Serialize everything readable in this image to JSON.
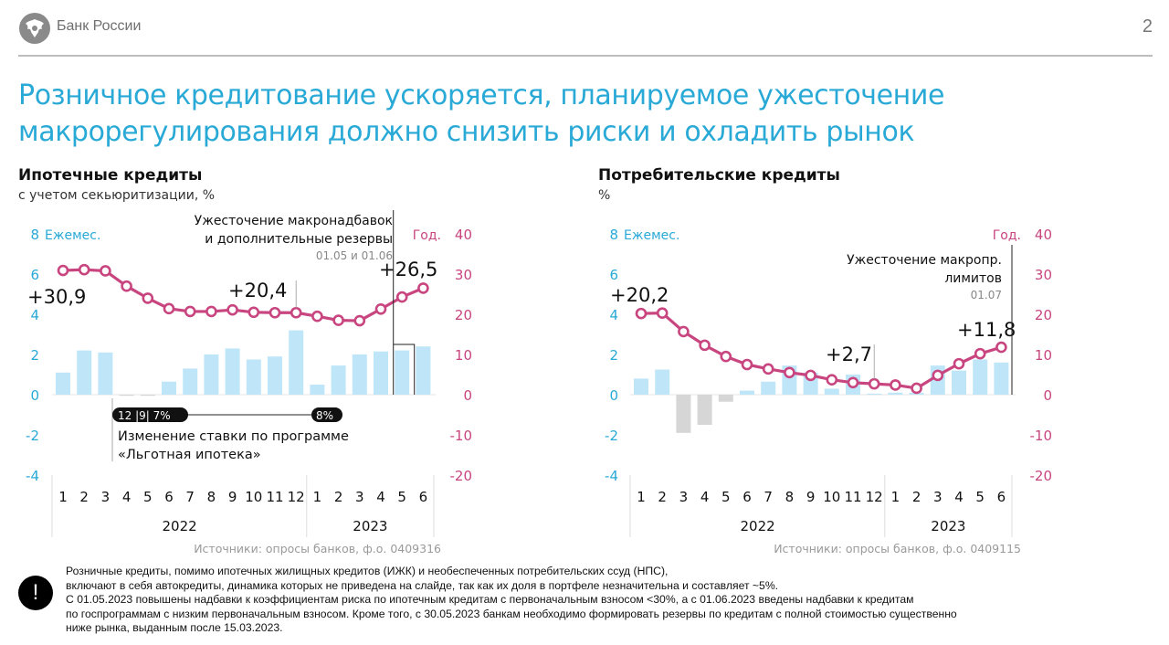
{
  "header": {
    "bank_name": "Банк России",
    "page_number": "2"
  },
  "title_lines": [
    "Розничное кредитование ускоряется, планируемое ужесточение",
    "макрорегулирования должно снизить риски и охладить рынок"
  ],
  "colors": {
    "accent_blue": "#29a9d6",
    "bar_blue": "#bfe6f8",
    "bar_negative": "#d6d6d6",
    "line_magenta": "#c8457f"
  },
  "chart_data": [
    {
      "type": "bar+line",
      "title": "Ипотечные кредиты",
      "subtitle": "с учетом секьюритизации, %",
      "left_axis_label": "Ежемес.",
      "right_axis_label": "Год.",
      "left_ticks": [
        8,
        6,
        4,
        2,
        0,
        -2,
        -4
      ],
      "right_ticks": [
        40,
        30,
        20,
        10,
        0,
        -10,
        -20
      ],
      "left_ylim": [
        -4,
        8
      ],
      "right_ylim": [
        -20,
        40
      ],
      "months": [
        "1",
        "2",
        "3",
        "4",
        "5",
        "6",
        "7",
        "8",
        "9",
        "10",
        "11",
        "12",
        "1",
        "2",
        "3",
        "4",
        "5",
        "6"
      ],
      "years": [
        {
          "label": "2022",
          "count": 12
        },
        {
          "label": "2023",
          "count": 6
        }
      ],
      "series": [
        {
          "name": "Ежемес.",
          "kind": "bar",
          "axis": "left",
          "values": [
            1.1,
            2.2,
            2.1,
            -0.05,
            -0.05,
            0.65,
            1.3,
            2.0,
            2.3,
            1.75,
            1.9,
            3.2,
            0.5,
            1.45,
            2.0,
            2.15,
            2.2,
            2.4
          ]
        },
        {
          "name": "Год.",
          "kind": "line",
          "axis": "right",
          "values": [
            30.9,
            31.1,
            30.8,
            27.0,
            24.0,
            21.4,
            20.7,
            20.7,
            21.1,
            20.5,
            20.4,
            20.4,
            19.5,
            18.5,
            18.4,
            21.3,
            24.3,
            26.5
          ]
        }
      ],
      "annotations": [
        {
          "text": "+30,9",
          "index": 0
        },
        {
          "text": "+20,4",
          "index": 11
        },
        {
          "text": "+26,5",
          "index": 17
        }
      ],
      "policy_note": {
        "lines": [
          "Ужесточение макронадбавок",
          "и дополнительные резервы"
        ],
        "date": "01.05 и 01.06"
      },
      "rate_change": {
        "pill_start": "12 |9| 7%",
        "pill_end": "8%",
        "lines": [
          "Изменение ставки по программе",
          "«Льготная ипотека»"
        ]
      },
      "source": "Источники: опросы банков, ф.о. 0409316"
    },
    {
      "type": "bar+line",
      "title": "Потребительские кредиты",
      "subtitle": "%",
      "left_axis_label": "Ежемес.",
      "right_axis_label": "Год.",
      "left_ticks": [
        8,
        6,
        4,
        2,
        0,
        -2,
        -4
      ],
      "right_ticks": [
        40,
        30,
        20,
        10,
        0,
        -10,
        -20
      ],
      "left_ylim": [
        -4,
        8
      ],
      "right_ylim": [
        -20,
        40
      ],
      "months": [
        "1",
        "2",
        "3",
        "4",
        "5",
        "6",
        "7",
        "8",
        "9",
        "10",
        "11",
        "12",
        "1",
        "2",
        "3",
        "4",
        "5",
        "6"
      ],
      "years": [
        {
          "label": "2022",
          "count": 12
        },
        {
          "label": "2023",
          "count": 6
        }
      ],
      "series": [
        {
          "name": "Ежемес.",
          "kind": "bar",
          "axis": "left",
          "values": [
            0.8,
            1.25,
            -1.9,
            -1.5,
            -0.35,
            0.2,
            0.65,
            1.45,
            1.1,
            0.3,
            1.0,
            0.05,
            0.1,
            0.1,
            1.45,
            1.2,
            1.75,
            1.6
          ]
        },
        {
          "name": "Год.",
          "kind": "line",
          "axis": "right",
          "values": [
            20.2,
            20.3,
            15.7,
            12.3,
            9.5,
            7.5,
            6.4,
            5.5,
            4.8,
            3.7,
            3.0,
            2.7,
            2.4,
            1.6,
            4.8,
            7.7,
            10.2,
            11.8
          ]
        }
      ],
      "annotations": [
        {
          "text": "+20,2",
          "index": 0
        },
        {
          "text": "+2,7",
          "index": 11
        },
        {
          "text": "+11,8",
          "index": 17
        }
      ],
      "policy_note": {
        "lines": [
          "Ужесточение макропр.",
          "лимитов"
        ],
        "date": "01.07"
      },
      "source": "Источники: опросы банков, ф.о. 0409115"
    }
  ],
  "footer": {
    "icon": "exclamation-icon",
    "icon_glyph": "!",
    "lines": [
      "Розничные кредиты, помимо ипотечных жилищных кредитов (ИЖК) и необеспеченных потребительских ссуд (НПС),",
      "включают в себя автокредиты, динамика которых не приведена на слайде, так как их доля в портфеле незначительна и составляет ~5%.",
      "С 01.05.2023 повышены надбавки к коэффициентам риска по ипотечным кредитам с первоначальным взносом <30%, а с 01.06.2023 введены надбавки к кредитам",
      "по госпрограммам с низким первоначальным взносом. Кроме того, с 30.05.2023 банкам необходимо формировать резервы по кредитам с полной стоимостью существенно",
      "ниже рынка, выданным после 15.03.2023."
    ]
  }
}
